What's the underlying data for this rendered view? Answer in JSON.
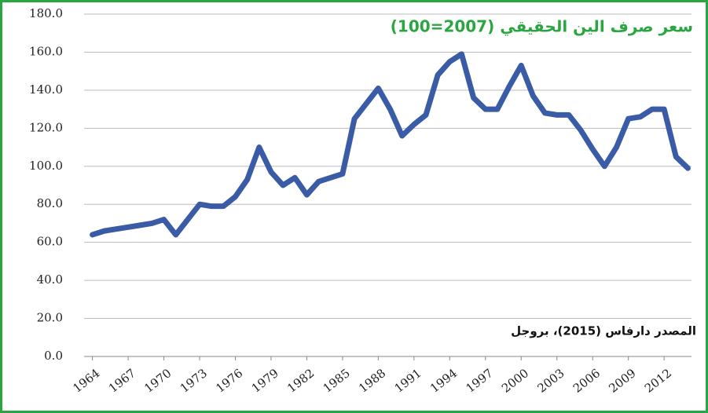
{
  "chart_data": {
    "type": "line",
    "title": "سعر صرف الين الحقيقي (2007=100)",
    "source": "المصدر دارفاس (2015)، بروجل",
    "x": [
      1964,
      1965,
      1966,
      1967,
      1968,
      1969,
      1970,
      1971,
      1972,
      1973,
      1974,
      1975,
      1976,
      1977,
      1978,
      1979,
      1980,
      1981,
      1982,
      1983,
      1984,
      1985,
      1986,
      1987,
      1988,
      1989,
      1990,
      1991,
      1992,
      1993,
      1994,
      1995,
      1996,
      1997,
      1998,
      1999,
      2000,
      2001,
      2002,
      2003,
      2004,
      2005,
      2006,
      2007,
      2008,
      2009,
      2010,
      2011,
      2012,
      2013,
      2014
    ],
    "values": [
      64,
      66,
      67,
      68,
      69,
      70,
      72,
      64,
      72,
      80,
      79,
      79,
      84,
      93,
      110,
      97,
      90,
      94,
      85,
      92,
      94,
      96,
      125,
      133,
      141,
      130,
      116,
      122,
      127,
      148,
      155,
      159,
      136,
      130,
      130,
      142,
      153,
      137,
      128,
      127,
      127,
      119,
      109,
      100,
      110,
      125,
      126,
      130,
      130,
      105,
      99
    ],
    "color": "#3a5ba6",
    "xlim": [
      1963.3,
      2014.3
    ],
    "xticks": [
      1964,
      1967,
      1970,
      1973,
      1976,
      1979,
      1982,
      1985,
      1988,
      1991,
      1994,
      1997,
      2000,
      2003,
      2006,
      2009,
      2012
    ],
    "ylim": [
      0,
      180
    ],
    "yticks": [
      {
        "value": 0,
        "label": "0.0"
      },
      {
        "value": 20,
        "label": "20.0"
      },
      {
        "value": 40,
        "label": "40.0"
      },
      {
        "value": 60,
        "label": "60.0"
      },
      {
        "value": 80,
        "label": "80.0"
      },
      {
        "value": 100,
        "label": "100.0"
      },
      {
        "value": 120,
        "label": "120.0"
      },
      {
        "value": 140,
        "label": "140.0"
      },
      {
        "value": 160,
        "label": "160.0"
      },
      {
        "value": 180,
        "label": "180.0"
      }
    ],
    "grid": true
  }
}
